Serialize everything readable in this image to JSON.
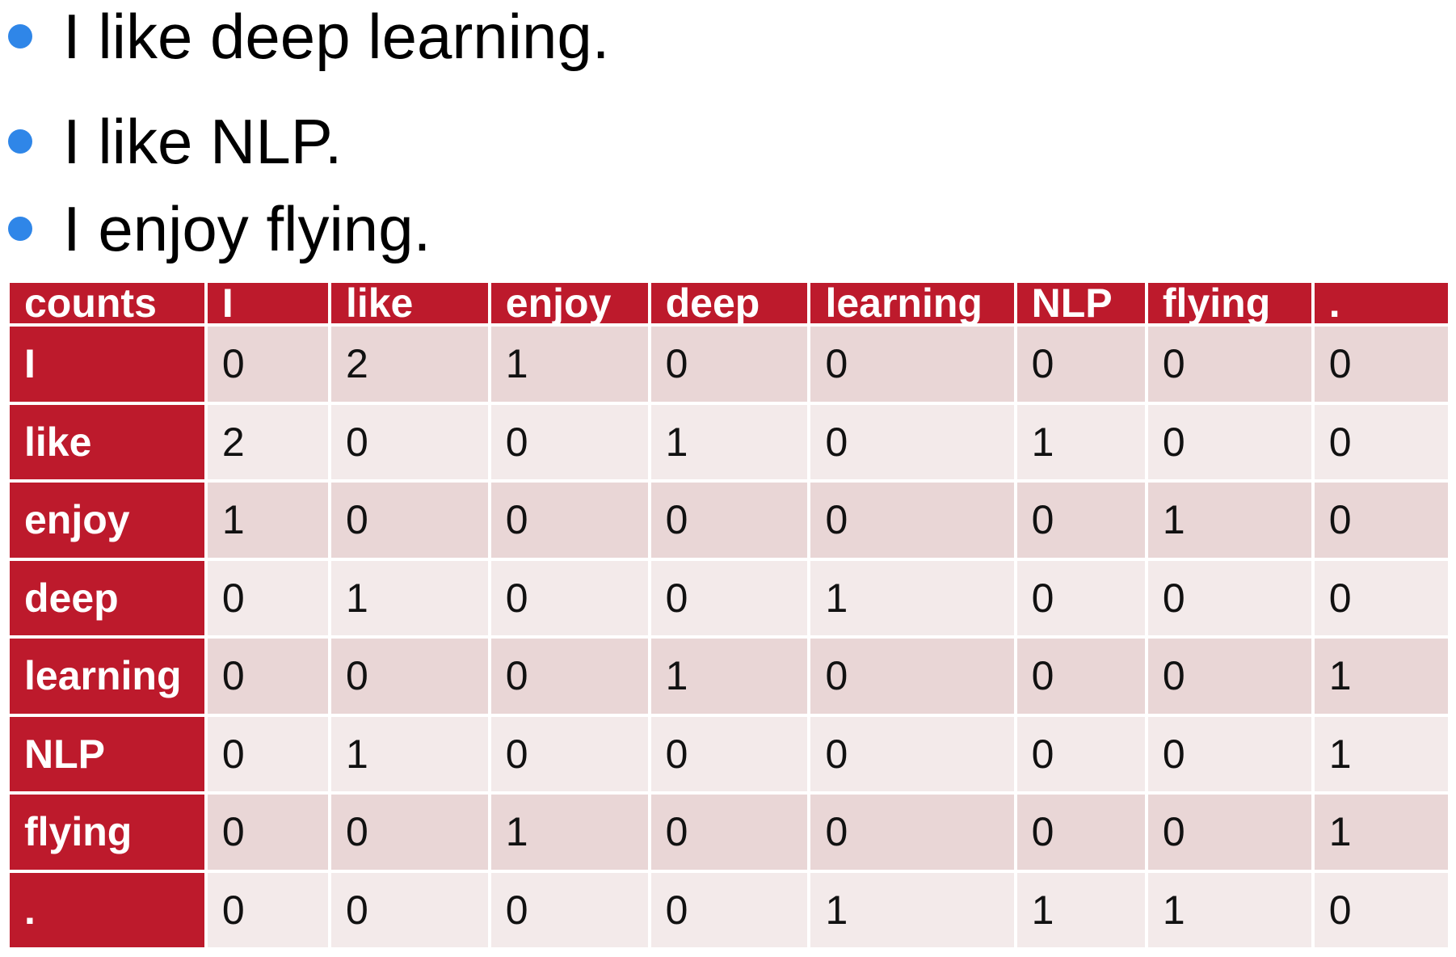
{
  "bullets": [
    "I like deep learning.",
    "I like NLP.",
    "I enjoy flying."
  ],
  "colors": {
    "bullet": "#2f86e8",
    "header_bg": "#bd1a2c",
    "header_text": "#ffffff",
    "row_odd_bg": "#e9d6d6",
    "row_even_bg": "#f3eaea"
  },
  "table": {
    "corner": "counts",
    "columns": [
      "I",
      "like",
      "enjoy",
      "deep",
      "learning",
      "NLP",
      "flying",
      "."
    ],
    "rows": [
      {
        "label": "I",
        "values": [
          "0",
          "2",
          "1",
          "0",
          "0",
          "0",
          "0",
          "0"
        ]
      },
      {
        "label": "like",
        "values": [
          "2",
          "0",
          "0",
          "1",
          "0",
          "1",
          "0",
          "0"
        ]
      },
      {
        "label": "enjoy",
        "values": [
          "1",
          "0",
          "0",
          "0",
          "0",
          "0",
          "1",
          "0"
        ]
      },
      {
        "label": "deep",
        "values": [
          "0",
          "1",
          "0",
          "0",
          "1",
          "0",
          "0",
          "0"
        ]
      },
      {
        "label": "learning",
        "values": [
          "0",
          "0",
          "0",
          "1",
          "0",
          "0",
          "0",
          "1"
        ]
      },
      {
        "label": "NLP",
        "values": [
          "0",
          "1",
          "0",
          "0",
          "0",
          "0",
          "0",
          "1"
        ]
      },
      {
        "label": "flying",
        "values": [
          "0",
          "0",
          "1",
          "0",
          "0",
          "0",
          "0",
          "1"
        ]
      },
      {
        "label": ".",
        "values": [
          "0",
          "0",
          "0",
          "0",
          "1",
          "1",
          "1",
          "0"
        ]
      }
    ]
  }
}
